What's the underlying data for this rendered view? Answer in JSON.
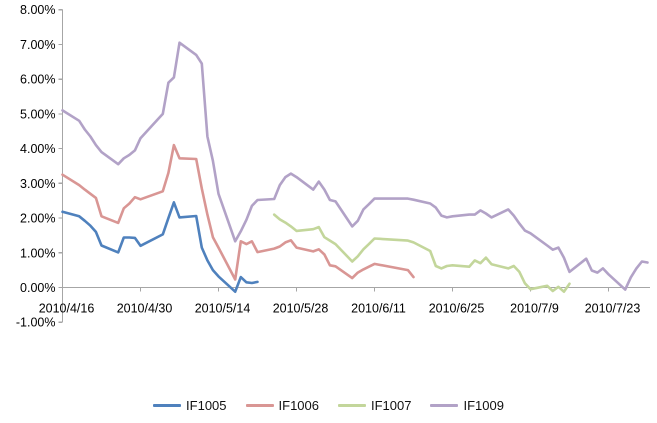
{
  "chart_data": {
    "type": "line",
    "title": "",
    "grid": false,
    "x_axis": {
      "type": "date",
      "start": "2010/4/16",
      "end": "2010/7/30",
      "tick_labels": [
        "2010/4/16",
        "2010/4/30",
        "2010/5/14",
        "2010/5/28",
        "2010/6/11",
        "2010/6/25",
        "2010/7/9",
        "2010/7/23"
      ]
    },
    "y_axis": {
      "unit": "%",
      "min": -1,
      "max": 8,
      "tick_labels": [
        "8.00%",
        "7.00%",
        "6.00%",
        "5.00%",
        "4.00%",
        "3.00%",
        "2.00%",
        "1.00%",
        "0.00%",
        "-1.00%"
      ],
      "tick_values": [
        8,
        7,
        6,
        5,
        4,
        3,
        2,
        1,
        0,
        -1
      ]
    },
    "legend": {
      "position": "bottom",
      "entries": [
        "IF1005",
        "IF1006",
        "IF1007",
        "IF1009"
      ]
    },
    "style": {
      "axis_color": "#A6A6A6",
      "text_color": "#000000",
      "background": "#FFFFFF",
      "line_width": 2.6
    },
    "series": [
      {
        "name": "IF1005",
        "color": "#4F81BD",
        "points": [
          [
            "2010/4/16",
            2.18
          ],
          [
            "2010/4/19",
            2.05
          ],
          [
            "2010/4/20",
            1.92
          ],
          [
            "2010/4/21",
            1.78
          ],
          [
            "2010/4/22",
            1.6
          ],
          [
            "2010/4/23",
            1.21
          ],
          [
            "2010/4/26",
            1.01
          ],
          [
            "2010/4/27",
            1.44
          ],
          [
            "2010/4/28",
            1.44
          ],
          [
            "2010/4/29",
            1.43
          ],
          [
            "2010/4/30",
            1.2
          ],
          [
            "2010/5/4",
            1.53
          ],
          [
            "2010/5/5",
            2.0
          ],
          [
            "2010/5/6",
            2.45
          ],
          [
            "2010/5/7",
            2.02
          ],
          [
            "2010/5/10",
            2.06
          ],
          [
            "2010/5/11",
            1.15
          ],
          [
            "2010/5/12",
            0.78
          ],
          [
            "2010/5/13",
            0.5
          ],
          [
            "2010/5/14",
            0.32
          ],
          [
            "2010/5/17",
            -0.12
          ],
          [
            "2010/5/18",
            0.3
          ],
          [
            "2010/5/19",
            0.15
          ],
          [
            "2010/5/20",
            0.13
          ],
          [
            "2010/5/21",
            0.16
          ]
        ]
      },
      {
        "name": "IF1006",
        "color": "#D99694",
        "points": [
          [
            "2010/4/16",
            3.25
          ],
          [
            "2010/4/19",
            2.95
          ],
          [
            "2010/4/20",
            2.82
          ],
          [
            "2010/4/21",
            2.7
          ],
          [
            "2010/4/22",
            2.58
          ],
          [
            "2010/4/23",
            2.05
          ],
          [
            "2010/4/26",
            1.86
          ],
          [
            "2010/4/27",
            2.28
          ],
          [
            "2010/4/28",
            2.42
          ],
          [
            "2010/4/29",
            2.6
          ],
          [
            "2010/4/30",
            2.54
          ],
          [
            "2010/5/4",
            2.77
          ],
          [
            "2010/5/5",
            3.3
          ],
          [
            "2010/5/6",
            4.1
          ],
          [
            "2010/5/7",
            3.72
          ],
          [
            "2010/5/10",
            3.7
          ],
          [
            "2010/5/11",
            2.85
          ],
          [
            "2010/5/12",
            2.1
          ],
          [
            "2010/5/13",
            1.45
          ],
          [
            "2010/5/14",
            1.15
          ],
          [
            "2010/5/17",
            0.23
          ],
          [
            "2010/5/18",
            1.33
          ],
          [
            "2010/5/19",
            1.25
          ],
          [
            "2010/5/20",
            1.33
          ],
          [
            "2010/5/21",
            1.02
          ],
          [
            "2010/5/24",
            1.12
          ],
          [
            "2010/5/25",
            1.18
          ],
          [
            "2010/5/26",
            1.3
          ],
          [
            "2010/5/27",
            1.36
          ],
          [
            "2010/5/28",
            1.15
          ],
          [
            "2010/5/31",
            1.04
          ],
          [
            "2010/6/1",
            1.1
          ],
          [
            "2010/6/2",
            0.95
          ],
          [
            "2010/6/3",
            0.64
          ],
          [
            "2010/6/4",
            0.61
          ],
          [
            "2010/6/7",
            0.27
          ],
          [
            "2010/6/8",
            0.43
          ],
          [
            "2010/6/9",
            0.52
          ],
          [
            "2010/6/10",
            0.6
          ],
          [
            "2010/6/11",
            0.68
          ],
          [
            "2010/6/17",
            0.5
          ],
          [
            "2010/6/18",
            0.3
          ]
        ]
      },
      {
        "name": "IF1007",
        "color": "#C3D69B",
        "points": [
          [
            "2010/5/24",
            2.1
          ],
          [
            "2010/5/25",
            1.96
          ],
          [
            "2010/5/26",
            1.87
          ],
          [
            "2010/5/27",
            1.76
          ],
          [
            "2010/5/28",
            1.63
          ],
          [
            "2010/5/31",
            1.68
          ],
          [
            "2010/6/1",
            1.74
          ],
          [
            "2010/6/2",
            1.45
          ],
          [
            "2010/6/3",
            1.35
          ],
          [
            "2010/6/4",
            1.25
          ],
          [
            "2010/6/7",
            0.75
          ],
          [
            "2010/6/8",
            0.9
          ],
          [
            "2010/6/9",
            1.1
          ],
          [
            "2010/6/10",
            1.25
          ],
          [
            "2010/6/11",
            1.41
          ],
          [
            "2010/6/17",
            1.35
          ],
          [
            "2010/6/18",
            1.3
          ],
          [
            "2010/6/21",
            1.05
          ],
          [
            "2010/6/22",
            0.62
          ],
          [
            "2010/6/23",
            0.55
          ],
          [
            "2010/6/24",
            0.62
          ],
          [
            "2010/6/25",
            0.64
          ],
          [
            "2010/6/28",
            0.6
          ],
          [
            "2010/6/29",
            0.78
          ],
          [
            "2010/6/30",
            0.7
          ],
          [
            "2010/7/1",
            0.86
          ],
          [
            "2010/7/2",
            0.67
          ],
          [
            "2010/7/5",
            0.55
          ],
          [
            "2010/7/6",
            0.62
          ],
          [
            "2010/7/7",
            0.45
          ],
          [
            "2010/7/8",
            0.12
          ],
          [
            "2010/7/9",
            -0.05
          ],
          [
            "2010/7/12",
            0.05
          ],
          [
            "2010/7/13",
            -0.1
          ],
          [
            "2010/7/14",
            0.02
          ],
          [
            "2010/7/15",
            -0.12
          ],
          [
            "2010/7/16",
            0.11
          ]
        ]
      },
      {
        "name": "IF1009",
        "color": "#B2A2C7",
        "points": [
          [
            "2010/4/16",
            5.1
          ],
          [
            "2010/4/19",
            4.8
          ],
          [
            "2010/4/20",
            4.55
          ],
          [
            "2010/4/21",
            4.35
          ],
          [
            "2010/4/22",
            4.1
          ],
          [
            "2010/4/23",
            3.9
          ],
          [
            "2010/4/26",
            3.55
          ],
          [
            "2010/4/27",
            3.72
          ],
          [
            "2010/4/28",
            3.82
          ],
          [
            "2010/4/29",
            3.95
          ],
          [
            "2010/4/30",
            4.3
          ],
          [
            "2010/5/4",
            5.0
          ],
          [
            "2010/5/5",
            5.9
          ],
          [
            "2010/5/6",
            6.05
          ],
          [
            "2010/5/7",
            7.05
          ],
          [
            "2010/5/10",
            6.7
          ],
          [
            "2010/5/11",
            6.45
          ],
          [
            "2010/5/12",
            4.35
          ],
          [
            "2010/5/13",
            3.65
          ],
          [
            "2010/5/14",
            2.7
          ],
          [
            "2010/5/17",
            1.33
          ],
          [
            "2010/5/18",
            1.62
          ],
          [
            "2010/5/19",
            1.95
          ],
          [
            "2010/5/20",
            2.35
          ],
          [
            "2010/5/21",
            2.52
          ],
          [
            "2010/5/24",
            2.55
          ],
          [
            "2010/5/25",
            2.95
          ],
          [
            "2010/5/26",
            3.18
          ],
          [
            "2010/5/27",
            3.28
          ],
          [
            "2010/5/28",
            3.18
          ],
          [
            "2010/5/31",
            2.82
          ],
          [
            "2010/6/1",
            3.05
          ],
          [
            "2010/6/2",
            2.82
          ],
          [
            "2010/6/3",
            2.52
          ],
          [
            "2010/6/4",
            2.48
          ],
          [
            "2010/6/7",
            1.76
          ],
          [
            "2010/6/8",
            1.92
          ],
          [
            "2010/6/9",
            2.25
          ],
          [
            "2010/6/10",
            2.4
          ],
          [
            "2010/6/11",
            2.56
          ],
          [
            "2010/6/17",
            2.56
          ],
          [
            "2010/6/18",
            2.53
          ],
          [
            "2010/6/21",
            2.42
          ],
          [
            "2010/6/22",
            2.3
          ],
          [
            "2010/6/23",
            2.07
          ],
          [
            "2010/6/24",
            2.02
          ],
          [
            "2010/6/25",
            2.05
          ],
          [
            "2010/6/28",
            2.1
          ],
          [
            "2010/6/29",
            2.1
          ],
          [
            "2010/6/30",
            2.22
          ],
          [
            "2010/7/1",
            2.13
          ],
          [
            "2010/7/2",
            2.02
          ],
          [
            "2010/7/5",
            2.25
          ],
          [
            "2010/7/6",
            2.07
          ],
          [
            "2010/7/7",
            1.84
          ],
          [
            "2010/7/8",
            1.64
          ],
          [
            "2010/7/9",
            1.56
          ],
          [
            "2010/7/12",
            1.21
          ],
          [
            "2010/7/13",
            1.09
          ],
          [
            "2010/7/14",
            1.15
          ],
          [
            "2010/7/15",
            0.86
          ],
          [
            "2010/7/16",
            0.45
          ],
          [
            "2010/7/19",
            0.83
          ],
          [
            "2010/7/20",
            0.49
          ],
          [
            "2010/7/21",
            0.43
          ],
          [
            "2010/7/22",
            0.55
          ],
          [
            "2010/7/23",
            0.38
          ],
          [
            "2010/7/26",
            -0.06
          ],
          [
            "2010/7/27",
            0.29
          ],
          [
            "2010/7/28",
            0.55
          ],
          [
            "2010/7/29",
            0.75
          ],
          [
            "2010/7/30",
            0.72
          ]
        ]
      }
    ]
  }
}
